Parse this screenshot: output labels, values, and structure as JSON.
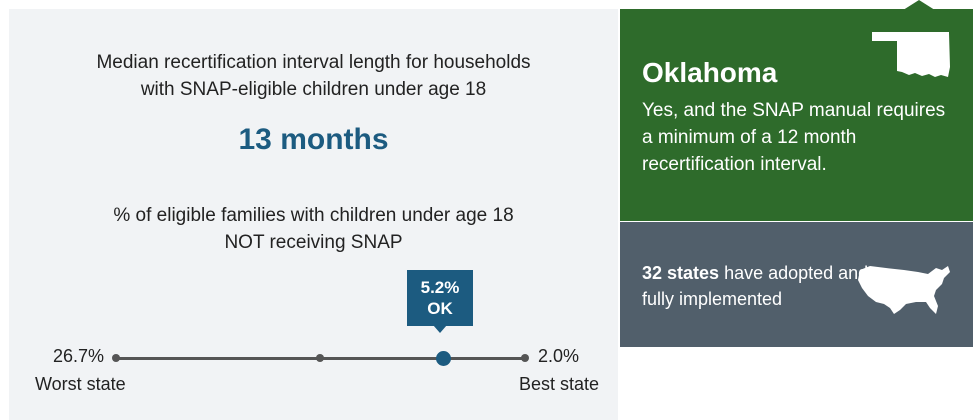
{
  "left": {
    "interval_heading_line1": "Median recertification interval length for households",
    "interval_heading_line2": "with SNAP-eligible children under age 18",
    "interval_value": "13 months",
    "pct_heading_line1": "% of eligible families with children under age 18",
    "pct_heading_line2": "NOT receiving SNAP",
    "marker_value": "5.2%",
    "marker_label": "OK",
    "scale_worst_value": "26.7%",
    "scale_worst_label": "Worst state",
    "scale_best_value": "2.0%",
    "scale_best_label": "Best state",
    "scale_min": 26.7,
    "scale_max": 2.0,
    "marker_numeric": 5.2
  },
  "state": {
    "name": "Oklahoma",
    "description": "Yes, and the SNAP manual requires a minimum of a 12 month recertification interval.",
    "map_icon": "oklahoma-map-icon",
    "color": "#2e6b2b"
  },
  "summary": {
    "count": "32 states",
    "text": " have adopted and fully implemented",
    "map_icon": "us-map-icon",
    "color": "#515f6b"
  },
  "colors": {
    "accent": "#1c5b80",
    "panel_bg": "#f1f3f5"
  }
}
